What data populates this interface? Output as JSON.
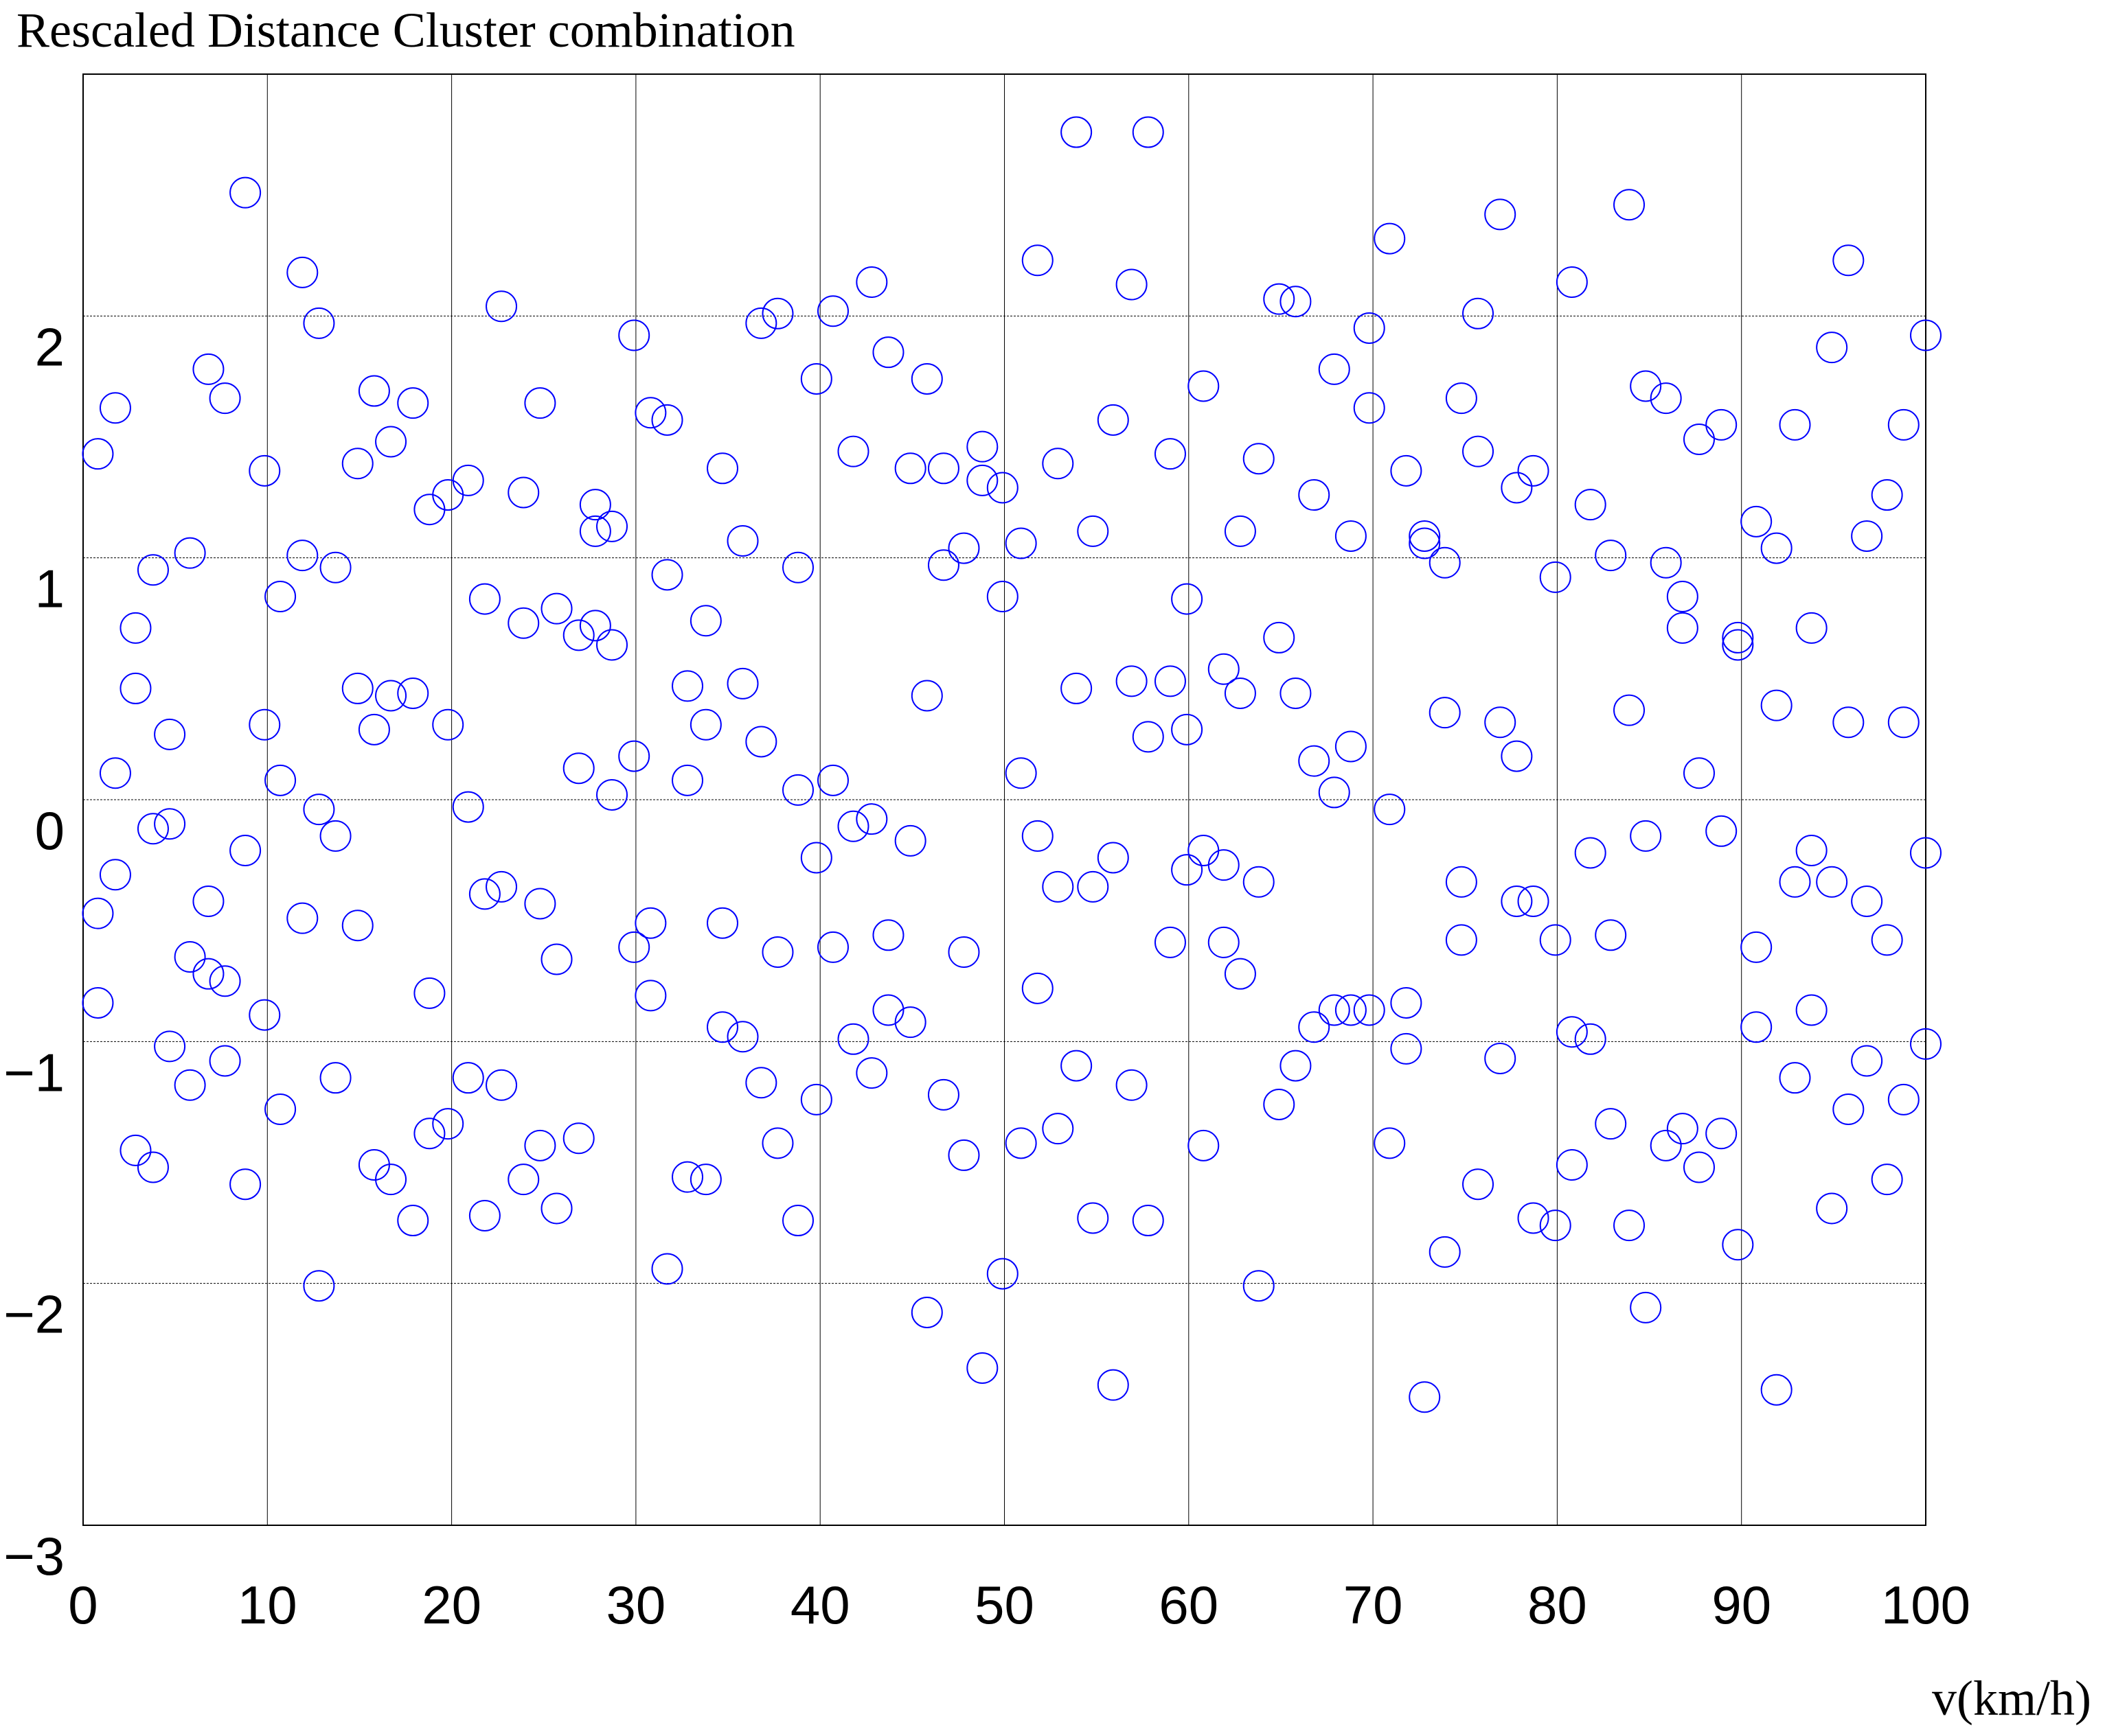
{
  "chart_data": {
    "type": "scatter",
    "title": "Rescaled Distance Cluster combination",
    "x_label": "v(km/h)",
    "color": "#0000ff",
    "x": [
      0.8,
      0.8,
      0.8,
      1.75,
      1.75,
      1.75,
      2.85,
      2.85,
      2.85,
      3.8,
      3.8,
      3.8,
      4.7,
      4.7,
      4.7,
      5.8,
      5.8,
      5.8,
      6.8,
      6.8,
      6.8,
      7.7,
      7.7,
      7.7,
      8.8,
      8.8,
      8.8,
      9.85,
      9.85,
      9.85,
      10.7,
      10.7,
      10.7,
      11.9,
      11.9,
      11.9,
      12.8,
      12.8,
      12.8,
      13.7,
      13.7,
      13.7,
      14.9,
      14.9,
      14.9,
      15.8,
      15.8,
      15.8,
      16.7,
      16.7,
      16.7,
      17.9,
      17.9,
      17.9,
      18.8,
      18.8,
      18.8,
      19.8,
      19.8,
      19.8,
      20.9,
      20.9,
      20.9,
      21.8,
      21.8,
      21.8,
      22.7,
      22.7,
      22.7,
      23.9,
      23.9,
      23.9,
      24.8,
      24.8,
      24.8,
      25.7,
      25.7,
      25.7,
      26.9,
      26.9,
      26.9,
      27.8,
      27.8,
      27.8,
      28.7,
      28.7,
      28.7,
      29.9,
      29.9,
      29.9,
      30.8,
      30.8,
      30.8,
      31.7,
      31.7,
      31.7,
      32.8,
      32.8,
      32.8,
      33.8,
      33.8,
      33.8,
      34.7,
      34.7,
      34.7,
      35.8,
      35.8,
      35.8,
      36.8,
      36.8,
      36.8,
      37.7,
      37.7,
      37.7,
      38.8,
      38.8,
      38.8,
      39.8,
      39.8,
      39.8,
      40.7,
      40.7,
      40.7,
      41.8,
      41.8,
      41.8,
      42.8,
      42.8,
      42.8,
      43.7,
      43.7,
      43.7,
      44.9,
      44.9,
      44.9,
      45.8,
      45.8,
      45.8,
      46.7,
      46.7,
      46.7,
      47.8,
      47.8,
      47.8,
      48.8,
      48.8,
      48.8,
      49.9,
      49.9,
      49.9,
      50.9,
      50.9,
      50.9,
      51.8,
      51.8,
      51.8,
      52.9,
      52.9,
      52.9,
      53.9,
      53.9,
      53.9,
      54.8,
      54.8,
      54.8,
      55.9,
      55.9,
      55.9,
      56.9,
      56.9,
      56.9,
      57.8,
      57.8,
      57.8,
      59.0,
      59.0,
      59.0,
      59.9,
      59.9,
      59.9,
      60.8,
      60.8,
      60.8,
      61.9,
      61.9,
      61.9,
      62.8,
      62.8,
      62.8,
      63.8,
      63.8,
      63.8,
      64.9,
      64.9,
      64.9,
      65.8,
      65.8,
      65.8,
      66.8,
      66.8,
      66.8,
      67.9,
      67.9,
      67.9,
      68.8,
      68.8,
      68.8,
      69.8,
      69.8,
      69.8,
      70.9,
      70.9,
      70.9,
      71.8,
      71.8,
      71.8,
      72.8,
      72.8,
      72.8,
      73.9,
      73.9,
      73.9,
      74.8,
      74.8,
      74.8,
      75.7,
      75.7,
      75.7,
      76.9,
      76.9,
      76.9,
      77.8,
      77.8,
      77.8,
      78.7,
      78.7,
      78.7,
      79.9,
      79.9,
      79.9,
      80.8,
      80.8,
      80.8,
      81.8,
      81.8,
      81.8,
      82.9,
      82.9,
      82.9,
      83.9,
      83.9,
      83.9,
      84.8,
      84.8,
      84.8,
      85.9,
      85.9,
      85.9,
      86.8,
      86.8,
      86.8,
      87.7,
      87.7,
      87.7,
      88.9,
      88.9,
      88.9,
      89.8,
      89.8,
      89.8,
      90.8,
      90.8,
      90.8,
      91.9,
      91.9,
      91.9,
      92.9,
      92.9,
      92.9,
      93.8,
      93.8,
      93.8,
      94.9,
      94.9,
      94.9,
      95.8,
      95.8,
      95.8,
      96.8,
      96.8,
      96.8,
      97.9,
      97.9,
      97.9,
      98.8,
      98.8,
      98.8,
      100,
      100,
      100
    ],
    "values": [
      1.43,
      -0.47,
      -0.84,
      1.62,
      0.11,
      -0.31,
      0.71,
      0.46,
      -1.45,
      0.95,
      -0.12,
      -1.52,
      0.27,
      -0.1,
      -1.02,
      1.02,
      -0.65,
      -1.18,
      1.78,
      -0.42,
      -0.72,
      1.66,
      -0.75,
      -1.08,
      2.51,
      -0.21,
      -1.59,
      1.36,
      0.31,
      -0.89,
      0.84,
      0.08,
      -1.28,
      2.18,
      1.01,
      -0.49,
      1.97,
      -0.04,
      -2.01,
      0.96,
      -0.15,
      -1.15,
      1.39,
      0.46,
      -0.52,
      1.69,
      0.29,
      -1.51,
      1.48,
      0.43,
      -1.57,
      1.64,
      0.44,
      -1.74,
      1.2,
      -0.8,
      -1.38,
      1.26,
      0.31,
      -1.34,
      1.32,
      -0.03,
      -1.15,
      0.83,
      -0.39,
      -1.72,
      2.04,
      -0.36,
      -1.18,
      1.27,
      0.73,
      -1.57,
      1.64,
      -0.43,
      -1.43,
      0.79,
      -0.66,
      -1.69,
      0.13,
      0.68,
      -1.4,
      1.22,
      1.11,
      0.72,
      1.13,
      0.64,
      0.02,
      1.92,
      0.18,
      -0.61,
      1.6,
      -0.51,
      -0.81,
      1.57,
      0.93,
      -1.94,
      0.47,
      0.08,
      -1.56,
      0.74,
      0.31,
      -1.57,
      1.37,
      -0.51,
      -0.94,
      1.07,
      0.48,
      -0.98,
      1.97,
      0.24,
      -1.17,
      2.01,
      -0.63,
      -1.42,
      0.96,
      0.04,
      -1.74,
      1.74,
      -0.24,
      -1.24,
      2.02,
      0.08,
      -0.61,
      1.44,
      -0.11,
      -0.99,
      2.14,
      -0.08,
      -1.13,
      1.85,
      -0.56,
      -0.87,
      1.37,
      -0.17,
      -0.92,
      1.74,
      0.43,
      -2.12,
      1.37,
      0.97,
      -1.22,
      1.04,
      -0.63,
      -1.47,
      1.46,
      1.32,
      -2.35,
      1.29,
      0.84,
      -1.96,
      1.06,
      0.11,
      -1.42,
      2.23,
      -0.15,
      -0.78,
      1.39,
      -0.36,
      -1.36,
      2.76,
      0.46,
      -1.1,
      1.11,
      -0.36,
      -1.73,
      1.57,
      -0.24,
      -2.42,
      2.13,
      0.49,
      -1.18,
      2.76,
      0.26,
      -1.74,
      1.43,
      0.49,
      -0.59,
      0.83,
      0.29,
      -0.29,
      1.71,
      -0.21,
      -1.43,
      0.54,
      -0.27,
      -0.59,
      1.11,
      0.44,
      -0.72,
      1.41,
      -0.34,
      -2.01,
      2.07,
      0.67,
      -1.26,
      2.06,
      0.44,
      -1.1,
      1.26,
      0.16,
      -0.94,
      1.78,
      0.03,
      -0.87,
      1.09,
      0.22,
      -0.87,
      1.95,
      1.62,
      -0.87,
      2.32,
      -0.04,
      -1.42,
      1.36,
      -0.84,
      -1.03,
      1.09,
      1.06,
      -2.47,
      0.98,
      0.36,
      -1.87,
      1.66,
      -0.34,
      -0.58,
      2.01,
      1.44,
      -1.59,
      2.42,
      0.32,
      -1.07,
      1.29,
      0.18,
      -0.42,
      1.36,
      -0.42,
      -1.73,
      0.92,
      -0.58,
      -1.76,
      2.14,
      -0.96,
      -1.51,
      1.22,
      -0.22,
      -0.99,
      1.01,
      -0.56,
      -1.34,
      2.46,
      0.37,
      -1.76,
      1.71,
      -0.15,
      -2.1,
      1.66,
      0.98,
      -1.43,
      0.84,
      0.71,
      -1.36,
      1.49,
      0.11,
      -1.52,
      1.55,
      -0.13,
      -1.38,
      0.67,
      0.64,
      -1.84,
      1.15,
      -0.61,
      -0.94,
      1.04,
      0.39,
      -2.44,
      1.55,
      -0.34,
      -1.15,
      0.71,
      -0.21,
      -0.87,
      1.87,
      -0.34,
      -1.69,
      2.23,
      0.32,
      -1.28,
      1.09,
      -0.42,
      -1.08,
      1.26,
      -0.58,
      -1.57,
      1.55,
      0.32,
      -1.24,
      1.92,
      -0.22,
      -1.01
    ],
    "xlim": [
      0,
      100
    ],
    "xticks": [
      0,
      10,
      20,
      30,
      40,
      50,
      60,
      70,
      80,
      90,
      100
    ],
    "ylim": [
      -3,
      3
    ],
    "yticks": [
      {
        "value": -3,
        "label": "−3"
      },
      {
        "value": -2,
        "label": "−2"
      },
      {
        "value": -1,
        "label": "−1"
      },
      0,
      1,
      2
    ],
    "grid": true
  }
}
